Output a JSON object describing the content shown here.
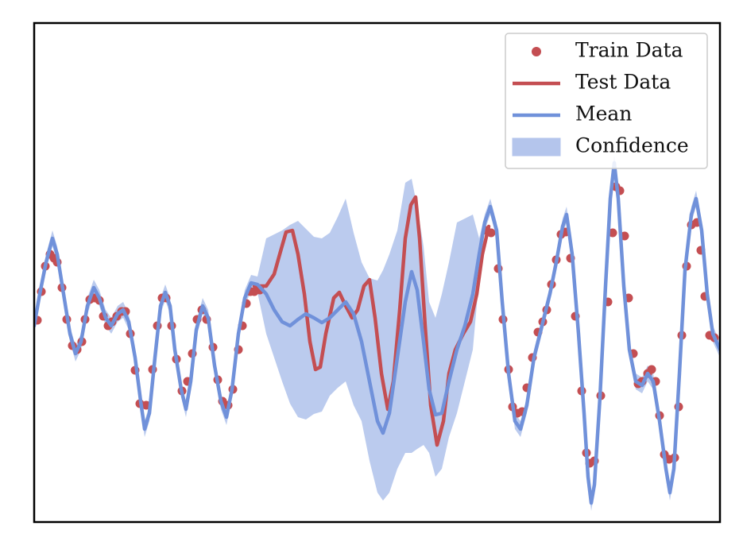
{
  "chart_data": {
    "type": "line",
    "xlim": [
      0,
      863
    ],
    "ylim": [
      -314,
      314
    ],
    "legend": "upper right",
    "series": [
      {
        "name": "Train Data",
        "kind": "scatter",
        "color": "#c44e52",
        "x": [
          4,
          9,
          14,
          20,
          25,
          29,
          35,
          41,
          48,
          54,
          60,
          64,
          70,
          76,
          82,
          87,
          93,
          98,
          104,
          110,
          115,
          121,
          127,
          133,
          141,
          149,
          155,
          161,
          166,
          173,
          179,
          186,
          193,
          199,
          205,
          211,
          217,
          225,
          231,
          237,
          244,
          250,
          257,
          262,
          267,
          272,
          277,
          284,
          569,
          575,
          584,
          590,
          597,
          602,
          608,
          614,
          620,
          627,
          634,
          640,
          645,
          651,
          657,
          663,
          669,
          675,
          681,
          689,
          695,
          699,
          705,
          713,
          722,
          728,
          732,
          737,
          743,
          748,
          754,
          760,
          765,
          772,
          777,
          782,
          787,
          793,
          799,
          806,
          811,
          815,
          821,
          827,
          834,
          839,
          844,
          850,
          856
        ],
        "values": [
          -60,
          -24,
          8,
          23,
          18,
          13,
          -19,
          -59,
          -92,
          -97,
          -87,
          -59,
          -34,
          -32,
          -35,
          -55,
          -67,
          -62,
          -55,
          -49,
          -49,
          -77,
          -123,
          -165,
          -167,
          -122,
          -67,
          -32,
          -32,
          -67,
          -109,
          -149,
          -137,
          -102,
          -59,
          -47,
          -59,
          -94,
          -135,
          -162,
          -167,
          -147,
          -97,
          -67,
          -39,
          -24,
          -24,
          -22,
          53,
          50,
          5,
          -59,
          -122,
          -169,
          -177,
          -175,
          -145,
          -107,
          -75,
          -62,
          -47,
          -15,
          16,
          48,
          51,
          18,
          -55,
          -149,
          -227,
          -240,
          -237,
          -155,
          -37,
          50,
          108,
          103,
          46,
          -32,
          -102,
          -140,
          -137,
          -127,
          -122,
          -137,
          -180,
          -229,
          -235,
          -233,
          -169,
          -79,
          8,
          60,
          63,
          28,
          -30,
          -79,
          -82
        ]
      },
      {
        "name": "Test Data",
        "kind": "line",
        "color": "#c44e52",
        "x": [
          277,
          292,
          302,
          309,
          317,
          325,
          332,
          340,
          347,
          354,
          360,
          367,
          377,
          384,
          392,
          400,
          407,
          415,
          422,
          429,
          437,
          445,
          452,
          460,
          467,
          474,
          480,
          485,
          492,
          499,
          507,
          515,
          522,
          530,
          540,
          549,
          557,
          564,
          572
        ],
        "values": [
          -17,
          -17,
          -2,
          23,
          51,
          53,
          23,
          -27,
          -87,
          -122,
          -119,
          -77,
          -32,
          -25,
          -42,
          -57,
          -47,
          -17,
          -9,
          -57,
          -127,
          -172,
          -137,
          -47,
          43,
          85,
          95,
          43,
          -67,
          -167,
          -217,
          -187,
          -127,
          -97,
          -77,
          -62,
          -27,
          23,
          58
        ]
      },
      {
        "name": "Mean",
        "kind": "line",
        "color": "#7091da",
        "x": [
          0,
          7,
          15,
          23,
          29,
          37,
          45,
          52,
          59,
          67,
          75,
          82,
          90,
          97,
          105,
          112,
          119,
          127,
          134,
          139,
          145,
          152,
          159,
          165,
          171,
          177,
          185,
          191,
          197,
          204,
          212,
          219,
          227,
          235,
          242,
          249,
          257,
          265,
          273,
          281,
          292,
          302,
          312,
          322,
          332,
          342,
          352,
          362,
          372,
          382,
          392,
          402,
          412,
          422,
          432,
          439,
          447,
          457,
          467,
          475,
          482,
          490,
          497,
          505,
          513,
          522,
          532,
          542,
          552,
          560,
          567,
          574,
          582,
          589,
          597,
          605,
          612,
          620,
          629,
          639,
          649,
          657,
          665,
          670,
          677,
          685,
          692,
          697,
          701,
          705,
          712,
          719,
          725,
          730,
          735,
          742,
          749,
          757,
          765,
          772,
          779,
          787,
          795,
          800,
          805,
          812,
          819,
          827,
          833,
          840,
          847,
          854,
          863
        ],
        "values": [
          -67,
          -27,
          13,
          43,
          23,
          -27,
          -77,
          -102,
          -87,
          -42,
          -19,
          -32,
          -57,
          -67,
          -52,
          -47,
          -62,
          -107,
          -162,
          -197,
          -177,
          -107,
          -42,
          -25,
          -42,
          -97,
          -147,
          -172,
          -137,
          -72,
          -42,
          -57,
          -117,
          -162,
          -182,
          -147,
          -77,
          -32,
          -13,
          -15,
          -27,
          -47,
          -62,
          -67,
          -59,
          -52,
          -57,
          -63,
          -57,
          -47,
          -37,
          -52,
          -87,
          -137,
          -187,
          -202,
          -177,
          -107,
          -37,
          1,
          -22,
          -87,
          -147,
          -179,
          -177,
          -137,
          -97,
          -67,
          -27,
          23,
          63,
          83,
          53,
          -37,
          -127,
          -187,
          -197,
          -167,
          -107,
          -67,
          -27,
          13,
          58,
          73,
          23,
          -77,
          -177,
          -257,
          -290,
          -267,
          -157,
          -17,
          93,
          138,
          93,
          -17,
          -97,
          -137,
          -142,
          -127,
          -137,
          -187,
          -247,
          -277,
          -247,
          -127,
          3,
          73,
          93,
          53,
          -27,
          -77,
          -97
        ]
      },
      {
        "name": "Confidence",
        "kind": "band",
        "color": "#b4c5ec",
        "x": [
          0,
          7,
          15,
          23,
          29,
          37,
          45,
          52,
          59,
          67,
          75,
          82,
          90,
          97,
          105,
          112,
          119,
          127,
          134,
          139,
          145,
          152,
          159,
          165,
          171,
          177,
          185,
          191,
          197,
          204,
          212,
          219,
          227,
          235,
          242,
          249,
          257,
          265,
          273,
          281,
          292,
          302,
          312,
          322,
          332,
          342,
          352,
          362,
          372,
          382,
          392,
          402,
          412,
          422,
          432,
          439,
          447,
          457,
          467,
          475,
          482,
          490,
          497,
          505,
          513,
          522,
          532,
          542,
          552,
          560,
          567,
          574,
          582,
          589,
          597,
          605,
          612,
          620,
          629,
          639,
          649,
          657,
          665,
          670,
          677,
          685,
          692,
          697,
          701,
          705,
          712,
          719,
          725,
          730,
          735,
          742,
          749,
          757,
          765,
          772,
          779,
          787,
          795,
          800,
          805,
          812,
          819,
          827,
          833,
          840,
          847,
          854,
          863
        ],
        "upper": [
          -57,
          -17,
          23,
          53,
          33,
          -17,
          -67,
          -92,
          -77,
          -32,
          -9,
          -22,
          -47,
          -57,
          -42,
          -37,
          -52,
          -97,
          -152,
          -187,
          -167,
          -97,
          -32,
          -15,
          -32,
          -87,
          -137,
          -162,
          -127,
          -62,
          -32,
          -47,
          -107,
          -152,
          -172,
          -137,
          -67,
          -22,
          -3,
          -5,
          43,
          48,
          53,
          60,
          65,
          55,
          45,
          43,
          50,
          70,
          93,
          50,
          13,
          -7,
          -10,
          3,
          23,
          53,
          113,
          118,
          83,
          33,
          -37,
          -57,
          -27,
          13,
          63,
          68,
          73,
          43,
          73,
          93,
          63,
          -27,
          -117,
          -177,
          -187,
          -157,
          -97,
          -57,
          -17,
          23,
          68,
          83,
          33,
          -67,
          -167,
          -247,
          -280,
          -257,
          -147,
          -7,
          103,
          148,
          103,
          -7,
          -87,
          -127,
          -132,
          -117,
          -127,
          -177,
          -237,
          -267,
          -237,
          -117,
          13,
          83,
          103,
          63,
          -17,
          -67,
          -87
        ],
        "lower": [
          -77,
          -37,
          3,
          33,
          13,
          -37,
          -87,
          -112,
          -97,
          -52,
          -29,
          -42,
          -67,
          -77,
          -62,
          -57,
          -72,
          -117,
          -172,
          -207,
          -187,
          -117,
          -52,
          -35,
          -52,
          -107,
          -157,
          -182,
          -147,
          -82,
          -52,
          -67,
          -127,
          -172,
          -192,
          -157,
          -87,
          -42,
          -23,
          -25,
          -77,
          -107,
          -137,
          -165,
          -182,
          -185,
          -178,
          -175,
          -155,
          -145,
          -137,
          -167,
          -187,
          -237,
          -277,
          -287,
          -277,
          -247,
          -227,
          -227,
          -222,
          -217,
          -227,
          -257,
          -247,
          -207,
          -177,
          -137,
          -97,
          -7,
          53,
          73,
          43,
          -47,
          -137,
          -197,
          -207,
          -177,
          -117,
          -77,
          -37,
          3,
          48,
          63,
          13,
          -87,
          -187,
          -267,
          -300,
          -277,
          -167,
          -27,
          83,
          128,
          83,
          -27,
          -107,
          -147,
          -152,
          -137,
          -147,
          -197,
          -257,
          -287,
          -257,
          -137,
          -7,
          63,
          83,
          43,
          -37,
          -87,
          -107
        ]
      }
    ]
  }
}
